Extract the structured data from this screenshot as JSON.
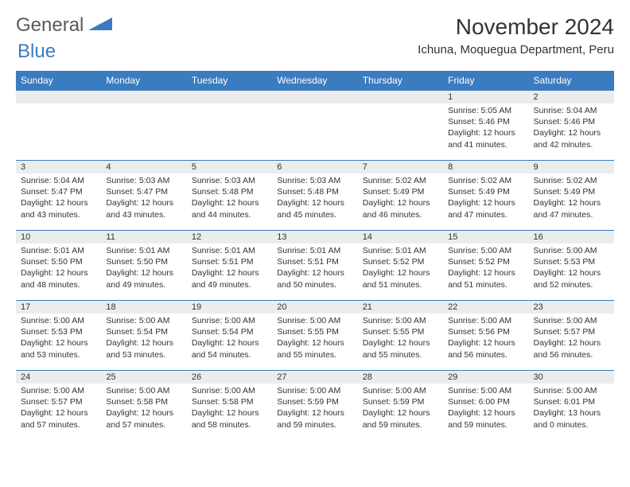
{
  "logo": {
    "part1": "General",
    "part2": "Blue"
  },
  "month_title": "November 2024",
  "location": "Ichuna, Moquegua Department, Peru",
  "colors": {
    "header_bg": "#3b7bbf",
    "header_text": "#ffffff",
    "daynum_bg": "#ececec",
    "border": "#3b7bbf",
    "text": "#333333",
    "logo_gray": "#5a5a5a",
    "logo_blue": "#3b7bbf",
    "page_bg": "#ffffff"
  },
  "typography": {
    "month_title_size": 28,
    "location_size": 15,
    "weekday_size": 12,
    "daynum_size": 11,
    "details_size": 10.5,
    "logo_size": 24
  },
  "weekdays": [
    "Sunday",
    "Monday",
    "Tuesday",
    "Wednesday",
    "Thursday",
    "Friday",
    "Saturday"
  ],
  "weeks": [
    [
      {
        "num": "",
        "sunrise": "",
        "sunset": "",
        "daylight": ""
      },
      {
        "num": "",
        "sunrise": "",
        "sunset": "",
        "daylight": ""
      },
      {
        "num": "",
        "sunrise": "",
        "sunset": "",
        "daylight": ""
      },
      {
        "num": "",
        "sunrise": "",
        "sunset": "",
        "daylight": ""
      },
      {
        "num": "",
        "sunrise": "",
        "sunset": "",
        "daylight": ""
      },
      {
        "num": "1",
        "sunrise": "Sunrise: 5:05 AM",
        "sunset": "Sunset: 5:46 PM",
        "daylight": "Daylight: 12 hours and 41 minutes."
      },
      {
        "num": "2",
        "sunrise": "Sunrise: 5:04 AM",
        "sunset": "Sunset: 5:46 PM",
        "daylight": "Daylight: 12 hours and 42 minutes."
      }
    ],
    [
      {
        "num": "3",
        "sunrise": "Sunrise: 5:04 AM",
        "sunset": "Sunset: 5:47 PM",
        "daylight": "Daylight: 12 hours and 43 minutes."
      },
      {
        "num": "4",
        "sunrise": "Sunrise: 5:03 AM",
        "sunset": "Sunset: 5:47 PM",
        "daylight": "Daylight: 12 hours and 43 minutes."
      },
      {
        "num": "5",
        "sunrise": "Sunrise: 5:03 AM",
        "sunset": "Sunset: 5:48 PM",
        "daylight": "Daylight: 12 hours and 44 minutes."
      },
      {
        "num": "6",
        "sunrise": "Sunrise: 5:03 AM",
        "sunset": "Sunset: 5:48 PM",
        "daylight": "Daylight: 12 hours and 45 minutes."
      },
      {
        "num": "7",
        "sunrise": "Sunrise: 5:02 AM",
        "sunset": "Sunset: 5:49 PM",
        "daylight": "Daylight: 12 hours and 46 minutes."
      },
      {
        "num": "8",
        "sunrise": "Sunrise: 5:02 AM",
        "sunset": "Sunset: 5:49 PM",
        "daylight": "Daylight: 12 hours and 47 minutes."
      },
      {
        "num": "9",
        "sunrise": "Sunrise: 5:02 AM",
        "sunset": "Sunset: 5:49 PM",
        "daylight": "Daylight: 12 hours and 47 minutes."
      }
    ],
    [
      {
        "num": "10",
        "sunrise": "Sunrise: 5:01 AM",
        "sunset": "Sunset: 5:50 PM",
        "daylight": "Daylight: 12 hours and 48 minutes."
      },
      {
        "num": "11",
        "sunrise": "Sunrise: 5:01 AM",
        "sunset": "Sunset: 5:50 PM",
        "daylight": "Daylight: 12 hours and 49 minutes."
      },
      {
        "num": "12",
        "sunrise": "Sunrise: 5:01 AM",
        "sunset": "Sunset: 5:51 PM",
        "daylight": "Daylight: 12 hours and 49 minutes."
      },
      {
        "num": "13",
        "sunrise": "Sunrise: 5:01 AM",
        "sunset": "Sunset: 5:51 PM",
        "daylight": "Daylight: 12 hours and 50 minutes."
      },
      {
        "num": "14",
        "sunrise": "Sunrise: 5:01 AM",
        "sunset": "Sunset: 5:52 PM",
        "daylight": "Daylight: 12 hours and 51 minutes."
      },
      {
        "num": "15",
        "sunrise": "Sunrise: 5:00 AM",
        "sunset": "Sunset: 5:52 PM",
        "daylight": "Daylight: 12 hours and 51 minutes."
      },
      {
        "num": "16",
        "sunrise": "Sunrise: 5:00 AM",
        "sunset": "Sunset: 5:53 PM",
        "daylight": "Daylight: 12 hours and 52 minutes."
      }
    ],
    [
      {
        "num": "17",
        "sunrise": "Sunrise: 5:00 AM",
        "sunset": "Sunset: 5:53 PM",
        "daylight": "Daylight: 12 hours and 53 minutes."
      },
      {
        "num": "18",
        "sunrise": "Sunrise: 5:00 AM",
        "sunset": "Sunset: 5:54 PM",
        "daylight": "Daylight: 12 hours and 53 minutes."
      },
      {
        "num": "19",
        "sunrise": "Sunrise: 5:00 AM",
        "sunset": "Sunset: 5:54 PM",
        "daylight": "Daylight: 12 hours and 54 minutes."
      },
      {
        "num": "20",
        "sunrise": "Sunrise: 5:00 AM",
        "sunset": "Sunset: 5:55 PM",
        "daylight": "Daylight: 12 hours and 55 minutes."
      },
      {
        "num": "21",
        "sunrise": "Sunrise: 5:00 AM",
        "sunset": "Sunset: 5:55 PM",
        "daylight": "Daylight: 12 hours and 55 minutes."
      },
      {
        "num": "22",
        "sunrise": "Sunrise: 5:00 AM",
        "sunset": "Sunset: 5:56 PM",
        "daylight": "Daylight: 12 hours and 56 minutes."
      },
      {
        "num": "23",
        "sunrise": "Sunrise: 5:00 AM",
        "sunset": "Sunset: 5:57 PM",
        "daylight": "Daylight: 12 hours and 56 minutes."
      }
    ],
    [
      {
        "num": "24",
        "sunrise": "Sunrise: 5:00 AM",
        "sunset": "Sunset: 5:57 PM",
        "daylight": "Daylight: 12 hours and 57 minutes."
      },
      {
        "num": "25",
        "sunrise": "Sunrise: 5:00 AM",
        "sunset": "Sunset: 5:58 PM",
        "daylight": "Daylight: 12 hours and 57 minutes."
      },
      {
        "num": "26",
        "sunrise": "Sunrise: 5:00 AM",
        "sunset": "Sunset: 5:58 PM",
        "daylight": "Daylight: 12 hours and 58 minutes."
      },
      {
        "num": "27",
        "sunrise": "Sunrise: 5:00 AM",
        "sunset": "Sunset: 5:59 PM",
        "daylight": "Daylight: 12 hours and 59 minutes."
      },
      {
        "num": "28",
        "sunrise": "Sunrise: 5:00 AM",
        "sunset": "Sunset: 5:59 PM",
        "daylight": "Daylight: 12 hours and 59 minutes."
      },
      {
        "num": "29",
        "sunrise": "Sunrise: 5:00 AM",
        "sunset": "Sunset: 6:00 PM",
        "daylight": "Daylight: 12 hours and 59 minutes."
      },
      {
        "num": "30",
        "sunrise": "Sunrise: 5:00 AM",
        "sunset": "Sunset: 6:01 PM",
        "daylight": "Daylight: 13 hours and 0 minutes."
      }
    ]
  ]
}
